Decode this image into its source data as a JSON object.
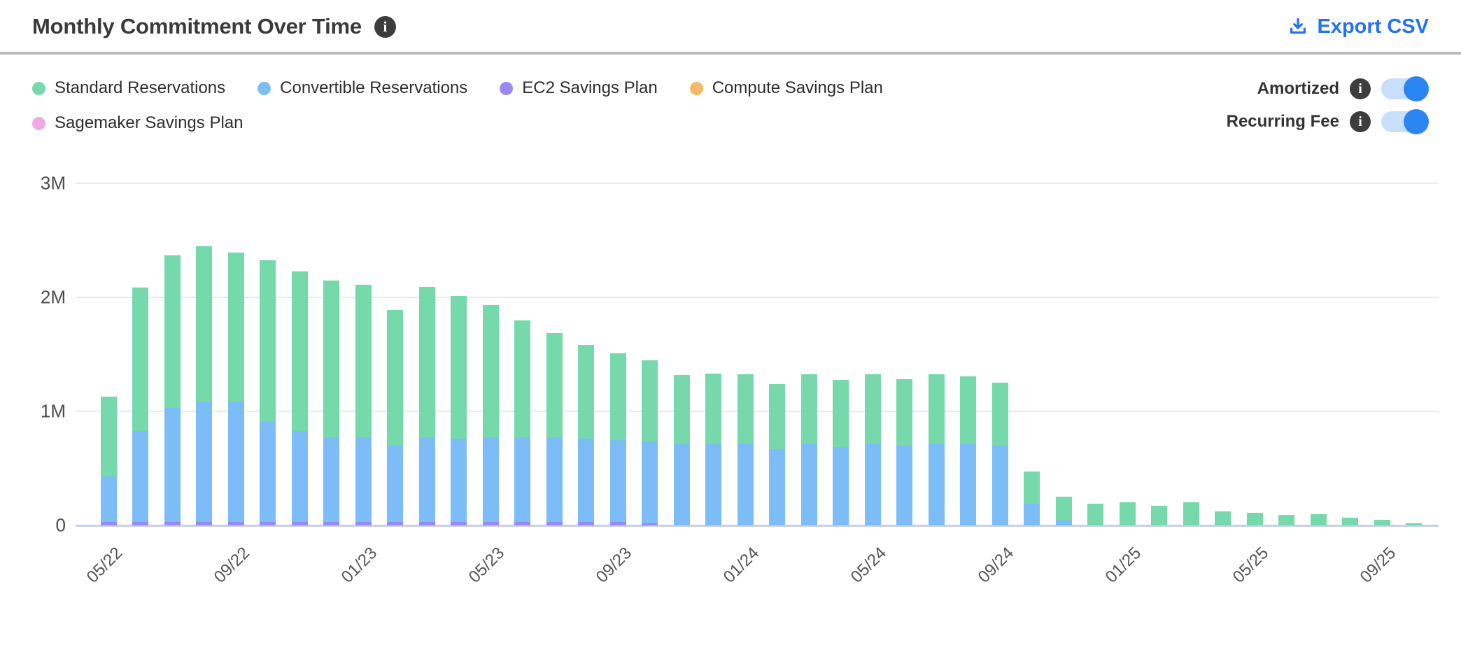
{
  "header": {
    "title": "Monthly Commitment Over Time",
    "export_label": "Export CSV"
  },
  "colors": {
    "standard": "#76d9ac",
    "convertible": "#7cbdf8",
    "ec2": "#9b89f3",
    "compute": "#f5ba67",
    "sagemaker": "#f0a9e5",
    "accent_blue": "#2273f4",
    "toggle_track": "#c7dffb",
    "toggle_knob": "#2b85f2"
  },
  "legend": {
    "items": [
      {
        "label": "Standard Reservations",
        "color": "#76d9ac"
      },
      {
        "label": "Convertible Reservations",
        "color": "#7cbdf8"
      },
      {
        "label": "EC2 Savings Plan",
        "color": "#9b89f3"
      },
      {
        "label": "Compute Savings Plan",
        "color": "#f5ba67"
      },
      {
        "label": "Sagemaker Savings Plan",
        "color": "#f0a9e5"
      }
    ]
  },
  "toggles": [
    {
      "label": "Amortized",
      "state": "on"
    },
    {
      "label": "Recurring Fee",
      "state": "on"
    }
  ],
  "chart_data": {
    "type": "bar",
    "stacked": true,
    "title": "Monthly Commitment Over Time",
    "xlabel": "",
    "ylabel": "",
    "ylim": [
      0,
      3000000
    ],
    "yticks": [
      {
        "label": "0",
        "value": 0
      },
      {
        "label": "1M",
        "value": 1
      },
      {
        "label": "2M",
        "value": 2
      },
      {
        "label": "3M",
        "value": 3
      }
    ],
    "grid": true,
    "legend_position": "top-left",
    "x_tick_every": 4,
    "values_unit": "millions",
    "categories": [
      "05/22",
      "06/22",
      "07/22",
      "08/22",
      "09/22",
      "10/22",
      "11/22",
      "12/22",
      "01/23",
      "02/23",
      "03/23",
      "04/23",
      "05/23",
      "06/23",
      "07/23",
      "08/23",
      "09/23",
      "10/23",
      "11/23",
      "12/23",
      "01/24",
      "02/24",
      "03/24",
      "04/24",
      "05/24",
      "06/24",
      "07/24",
      "08/24",
      "09/24",
      "10/24",
      "11/24",
      "12/24",
      "01/25",
      "02/25",
      "03/25",
      "04/25",
      "05/25",
      "06/25",
      "07/25",
      "08/25",
      "09/25",
      "10/25"
    ],
    "stack_order_bottom_to_top": [
      "EC2 Savings Plan",
      "Convertible Reservations",
      "Standard Reservations",
      "Compute Savings Plan",
      "Sagemaker Savings Plan"
    ],
    "series": [
      {
        "name": "EC2 Savings Plan",
        "color": "#9b89f3",
        "values": [
          0.03,
          0.03,
          0.03,
          0.03,
          0.03,
          0.03,
          0.03,
          0.03,
          0.03,
          0.03,
          0.03,
          0.03,
          0.03,
          0.03,
          0.03,
          0.03,
          0.03,
          0.02,
          0,
          0,
          0,
          0,
          0,
          0,
          0,
          0,
          0,
          0,
          0,
          0,
          0,
          0,
          0,
          0,
          0,
          0,
          0,
          0,
          0,
          0,
          0,
          0
        ]
      },
      {
        "name": "Convertible Reservations",
        "color": "#7cbdf8",
        "values": [
          0.4,
          0.8,
          1.0,
          1.05,
          1.05,
          0.88,
          0.8,
          0.74,
          0.74,
          0.67,
          0.74,
          0.73,
          0.74,
          0.74,
          0.74,
          0.73,
          0.72,
          0.72,
          0.71,
          0.71,
          0.72,
          0.67,
          0.72,
          0.69,
          0.72,
          0.7,
          0.72,
          0.72,
          0.7,
          0.19,
          0.04,
          0,
          0,
          0,
          0,
          0,
          0,
          0,
          0,
          0,
          0,
          0
        ]
      },
      {
        "name": "Standard Reservations",
        "color": "#76d9ac",
        "values": [
          0.7,
          1.26,
          1.34,
          1.37,
          1.31,
          1.42,
          1.4,
          1.38,
          1.34,
          1.19,
          1.32,
          1.25,
          1.16,
          1.03,
          0.92,
          0.82,
          0.76,
          0.71,
          0.61,
          0.62,
          0.61,
          0.57,
          0.61,
          0.59,
          0.61,
          0.58,
          0.61,
          0.59,
          0.55,
          0.28,
          0.21,
          0.19,
          0.2,
          0.17,
          0.2,
          0.12,
          0.11,
          0.09,
          0.1,
          0.07,
          0.05,
          0.02
        ]
      },
      {
        "name": "Compute Savings Plan",
        "color": "#f5ba67",
        "values": [
          0,
          0,
          0,
          0,
          0,
          0,
          0,
          0,
          0,
          0,
          0,
          0,
          0,
          0,
          0,
          0,
          0,
          0,
          0,
          0,
          0,
          0,
          0,
          0,
          0,
          0,
          0,
          0,
          0,
          0,
          0,
          0,
          0,
          0,
          0,
          0,
          0,
          0,
          0,
          0,
          0,
          0
        ]
      },
      {
        "name": "Sagemaker Savings Plan",
        "color": "#f0a9e5",
        "values": [
          0,
          0,
          0,
          0,
          0,
          0,
          0,
          0,
          0,
          0,
          0,
          0,
          0,
          0,
          0,
          0,
          0,
          0,
          0,
          0,
          0,
          0,
          0,
          0,
          0,
          0,
          0,
          0,
          0,
          0,
          0,
          0,
          0,
          0,
          0,
          0,
          0,
          0,
          0,
          0,
          0,
          0
        ]
      }
    ]
  }
}
